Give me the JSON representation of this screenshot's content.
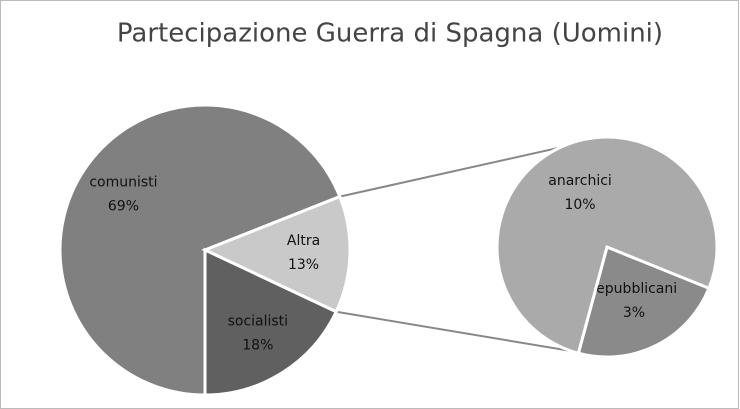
{
  "chart_data": {
    "type": "pie",
    "title": "Partecipazione Guerra di Spagna (Uomini)",
    "categories": [
      "comunisti",
      "Altra",
      "socialisti"
    ],
    "values": [
      69,
      13,
      18
    ],
    "value_labels": [
      "69%",
      "13%",
      "18%"
    ],
    "colors": [
      "#808080",
      "#c9c9c9",
      "#606060"
    ],
    "subpie": {
      "categories": [
        "repubblicani",
        "anarchici"
      ],
      "values": [
        3,
        10
      ],
      "value_labels": [
        "3%",
        "10%"
      ],
      "colors": [
        "#8a8a8a",
        "#aaaaaa"
      ]
    }
  }
}
